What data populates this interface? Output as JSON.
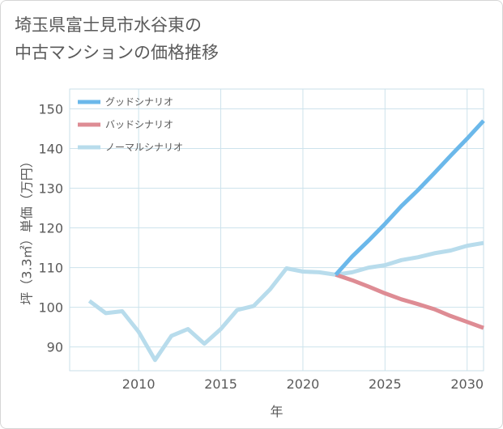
{
  "chart_title": "埼玉県富士見市水谷東の\n中古マンションの価格推移",
  "chart_data": {
    "type": "line",
    "title": "埼玉県富士見市水谷東の中古マンションの価格推移",
    "xlabel": "年",
    "ylabel": "坪（3.3㎡）単価（万円）",
    "xlim": [
      2005.8,
      2031
    ],
    "ylim": [
      84,
      155
    ],
    "xticks": [
      2010,
      2015,
      2020,
      2025,
      2030
    ],
    "yticks": [
      90,
      100,
      110,
      120,
      130,
      140,
      150
    ],
    "grid": true,
    "legend_position": "top-left",
    "series": [
      {
        "name": "グッドシナリオ",
        "color": "#6bb8ea",
        "x": [
          2022,
          2023,
          2024,
          2025,
          2026,
          2027,
          2028,
          2029,
          2030,
          2031
        ],
        "values": [
          108.2,
          112.8,
          116.8,
          121.0,
          125.5,
          129.5,
          133.8,
          138.2,
          142.5,
          147.0
        ]
      },
      {
        "name": "バッドシナリオ",
        "color": "#de8c94",
        "x": [
          2022,
          2023,
          2024,
          2025,
          2026,
          2027,
          2028,
          2029,
          2030,
          2031
        ],
        "values": [
          108.2,
          106.8,
          105.2,
          103.5,
          102.0,
          100.8,
          99.5,
          97.8,
          96.3,
          94.8
        ]
      },
      {
        "name": "ノーマルシナリオ",
        "color": "#b8dcec",
        "x": [
          2007,
          2008,
          2009,
          2010,
          2011,
          2012,
          2013,
          2014,
          2015,
          2016,
          2017,
          2018,
          2019,
          2020,
          2021,
          2022,
          2023,
          2024,
          2025,
          2026,
          2027,
          2028,
          2029,
          2030,
          2031
        ],
        "values": [
          101.6,
          98.5,
          99.0,
          93.8,
          86.7,
          92.8,
          94.5,
          90.8,
          94.5,
          99.3,
          100.3,
          104.5,
          109.8,
          109.0,
          108.8,
          108.2,
          108.8,
          110.0,
          110.6,
          111.9,
          112.6,
          113.6,
          114.3,
          115.5,
          116.2
        ]
      }
    ]
  }
}
